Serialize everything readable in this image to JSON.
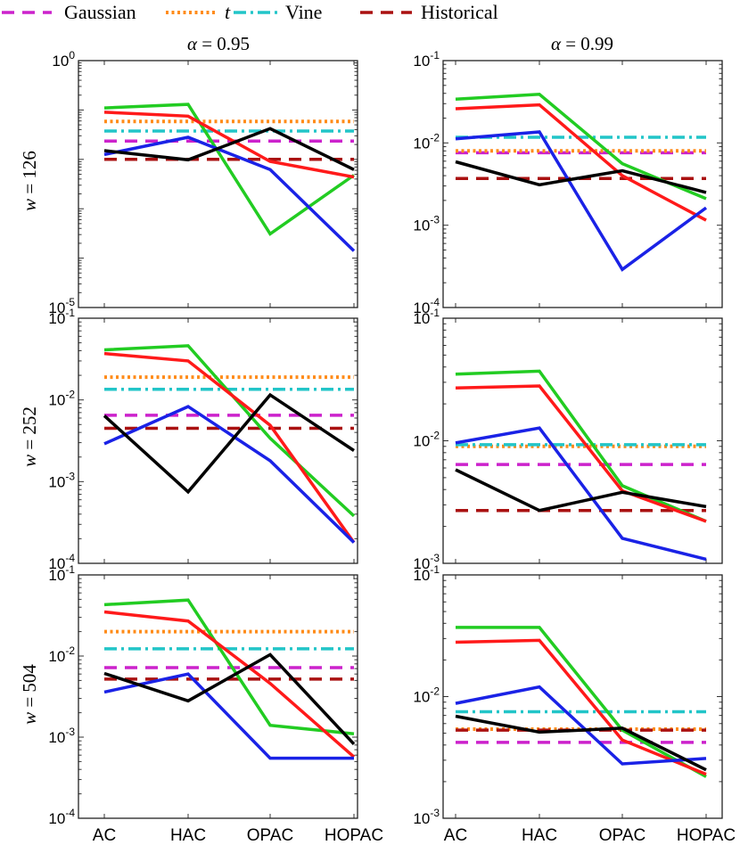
{
  "colors": {
    "gaussian": "#cc22cc",
    "t": "#ff8c1a",
    "vine": "#22c5c8",
    "historical": "#aa1111",
    "ac": "#22cc22",
    "hac": "#ff1a1a",
    "opac": "#1a22e6",
    "hopac": "#000000"
  },
  "legend": {
    "entries": [
      {
        "key": "gaussian",
        "label": "Gaussian",
        "style": "dash"
      },
      {
        "key": "t",
        "label": "t",
        "style": "dot",
        "italic": true
      },
      {
        "key": "vine",
        "label": "Vine",
        "style": "dashdot"
      },
      {
        "key": "historical",
        "label": "Historical",
        "style": "dash"
      }
    ]
  },
  "column_titles": [
    {
      "prefix": "α",
      "rest": " = 0.95"
    },
    {
      "prefix": "α",
      "rest": " = 0.99"
    }
  ],
  "row_labels": [
    {
      "prefix": "w",
      "rest": " = 126"
    },
    {
      "prefix": "w",
      "rest": " = 252"
    },
    {
      "prefix": "w",
      "rest": " = 504"
    }
  ],
  "x_tick_labels": [
    "AC",
    "HAC",
    "OPAC",
    "HOPAC"
  ],
  "chart_data": [
    {
      "type": "line",
      "yscale": "log",
      "title": "α = 0.95",
      "ylabel": "w = 126",
      "ylim": [
        1e-05,
        1
      ],
      "yticks": [
        {
          "base": "10",
          "exp": "-5"
        },
        {
          "base": "10",
          "exp": "0"
        }
      ],
      "categories": [
        "AC",
        "HAC",
        "OPAC",
        "HOPAC"
      ],
      "series": [
        {
          "key": "ac",
          "values": [
            0.11,
            0.13,
            0.00031,
            0.0048
          ]
        },
        {
          "key": "hac",
          "values": [
            0.09,
            0.075,
            0.0091,
            0.0044
          ]
        },
        {
          "key": "opac",
          "values": [
            0.0125,
            0.028,
            0.0062,
            0.00014
          ]
        },
        {
          "key": "hopac",
          "values": [
            0.015,
            0.0098,
            0.042,
            0.0062
          ]
        }
      ],
      "hlines": [
        {
          "key": "gaussian",
          "value": 0.0235
        },
        {
          "key": "t",
          "value": 0.0585
        },
        {
          "key": "vine",
          "value": 0.0375
        },
        {
          "key": "historical",
          "value": 0.01
        }
      ]
    },
    {
      "type": "line",
      "yscale": "log",
      "title": "α = 0.99",
      "ylabel": "w = 126",
      "ylim": [
        0.0001,
        0.1
      ],
      "yticks": [
        {
          "base": "10",
          "exp": "-4"
        },
        {
          "base": "10",
          "exp": "-3"
        },
        {
          "base": "10",
          "exp": "-2"
        },
        {
          "base": "10",
          "exp": "-1"
        }
      ],
      "categories": [
        "AC",
        "HAC",
        "OPAC",
        "HOPAC"
      ],
      "series": [
        {
          "key": "ac",
          "values": [
            0.034,
            0.039,
            0.0056,
            0.0021
          ]
        },
        {
          "key": "hac",
          "values": [
            0.026,
            0.029,
            0.004,
            0.00115
          ]
        },
        {
          "key": "opac",
          "values": [
            0.0112,
            0.0136,
            0.00029,
            0.00163
          ]
        },
        {
          "key": "hopac",
          "values": [
            0.0059,
            0.0031,
            0.0046,
            0.0025
          ]
        }
      ],
      "hlines": [
        {
          "key": "gaussian",
          "value": 0.0076
        },
        {
          "key": "t",
          "value": 0.008
        },
        {
          "key": "vine",
          "value": 0.0117
        },
        {
          "key": "historical",
          "value": 0.0037
        }
      ]
    },
    {
      "type": "line",
      "yscale": "log",
      "title": "α = 0.95",
      "ylabel": "w = 252",
      "ylim": [
        0.0001,
        0.1
      ],
      "yticks": [
        {
          "base": "10",
          "exp": "-4"
        },
        {
          "base": "10",
          "exp": "-3"
        },
        {
          "base": "10",
          "exp": "-2"
        },
        {
          "base": "10",
          "exp": "-1"
        }
      ],
      "categories": [
        "AC",
        "HAC",
        "OPAC",
        "HOPAC"
      ],
      "series": [
        {
          "key": "ac",
          "values": [
            0.041,
            0.046,
            0.0034,
            0.00038
          ]
        },
        {
          "key": "hac",
          "values": [
            0.037,
            0.03,
            0.0049,
            0.00018
          ]
        },
        {
          "key": "opac",
          "values": [
            0.0029,
            0.0083,
            0.0018,
            0.00018
          ]
        },
        {
          "key": "hopac",
          "values": [
            0.0064,
            0.00075,
            0.0115,
            0.0024
          ]
        }
      ],
      "hlines": [
        {
          "key": "gaussian",
          "value": 0.0065
        },
        {
          "key": "t",
          "value": 0.019
        },
        {
          "key": "vine",
          "value": 0.0135
        },
        {
          "key": "historical",
          "value": 0.0045
        }
      ]
    },
    {
      "type": "line",
      "yscale": "log",
      "title": "α = 0.99",
      "ylabel": "w = 252",
      "ylim": [
        0.001,
        0.1
      ],
      "yticks": [
        {
          "base": "10",
          "exp": "-3"
        },
        {
          "base": "10",
          "exp": "-2"
        },
        {
          "base": "10",
          "exp": "-1"
        }
      ],
      "categories": [
        "AC",
        "HAC",
        "OPAC",
        "HOPAC"
      ],
      "series": [
        {
          "key": "ac",
          "values": [
            0.035,
            0.037,
            0.0043,
            0.0022
          ]
        },
        {
          "key": "hac",
          "values": [
            0.027,
            0.028,
            0.0039,
            0.0022
          ]
        },
        {
          "key": "opac",
          "values": [
            0.0096,
            0.0127,
            0.0016,
            0.00108
          ]
        },
        {
          "key": "hopac",
          "values": [
            0.0058,
            0.0027,
            0.0038,
            0.0029
          ]
        }
      ],
      "hlines": [
        {
          "key": "gaussian",
          "value": 0.0064
        },
        {
          "key": "t",
          "value": 0.009
        },
        {
          "key": "vine",
          "value": 0.0093
        },
        {
          "key": "historical",
          "value": 0.0027
        }
      ]
    },
    {
      "type": "line",
      "yscale": "log",
      "title": "α = 0.95",
      "ylabel": "w = 504",
      "ylim": [
        0.0001,
        0.1
      ],
      "yticks": [
        {
          "base": "10",
          "exp": "-4"
        },
        {
          "base": "10",
          "exp": "-3"
        },
        {
          "base": "10",
          "exp": "-2"
        },
        {
          "base": "10",
          "exp": "-1"
        }
      ],
      "categories": [
        "AC",
        "HAC",
        "OPAC",
        "HOPAC"
      ],
      "series": [
        {
          "key": "ac",
          "values": [
            0.043,
            0.049,
            0.0014,
            0.0011
          ]
        },
        {
          "key": "hac",
          "values": [
            0.035,
            0.027,
            0.0046,
            0.00057
          ]
        },
        {
          "key": "opac",
          "values": [
            0.0036,
            0.006,
            0.00055,
            0.00055
          ]
        },
        {
          "key": "hopac",
          "values": [
            0.0061,
            0.0028,
            0.0104,
            0.00082
          ]
        }
      ],
      "hlines": [
        {
          "key": "gaussian",
          "value": 0.0072
        },
        {
          "key": "t",
          "value": 0.02
        },
        {
          "key": "vine",
          "value": 0.0123
        },
        {
          "key": "historical",
          "value": 0.0052
        }
      ]
    },
    {
      "type": "line",
      "yscale": "log",
      "title": "α = 0.99",
      "ylabel": "w = 504",
      "ylim": [
        0.001,
        0.1
      ],
      "yticks": [
        {
          "base": "10",
          "exp": "-3"
        },
        {
          "base": "10",
          "exp": "-2"
        },
        {
          "base": "10",
          "exp": "-1"
        }
      ],
      "categories": [
        "AC",
        "HAC",
        "OPAC",
        "HOPAC"
      ],
      "series": [
        {
          "key": "ac",
          "values": [
            0.037,
            0.037,
            0.0053,
            0.0022
          ]
        },
        {
          "key": "hac",
          "values": [
            0.028,
            0.029,
            0.0044,
            0.0023
          ]
        },
        {
          "key": "opac",
          "values": [
            0.0088,
            0.012,
            0.0028,
            0.0031
          ]
        },
        {
          "key": "hopac",
          "values": [
            0.0069,
            0.0051,
            0.0055,
            0.0025
          ]
        }
      ],
      "hlines": [
        {
          "key": "gaussian",
          "value": 0.0042
        },
        {
          "key": "t",
          "value": 0.0054
        },
        {
          "key": "vine",
          "value": 0.0075
        },
        {
          "key": "historical",
          "value": 0.0053
        }
      ]
    }
  ]
}
